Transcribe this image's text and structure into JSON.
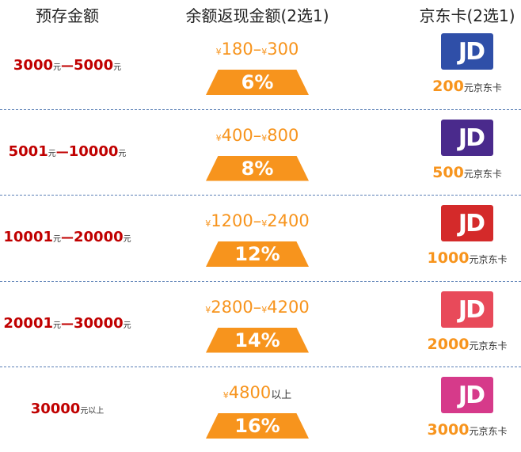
{
  "header": {
    "col1": "预存金额",
    "col2": "余额返现金额(2选1)",
    "col3": "京东卡(2选1)"
  },
  "card_logo": "JD",
  "rows": [
    {
      "deposit": {
        "from": "3000",
        "from_unit": "元",
        "dash": "—",
        "to": "5000",
        "to_unit": "元"
      },
      "cashback": {
        "yen": "¥",
        "from": "180",
        "dash": "–",
        "to_yen": "¥",
        "to": "300"
      },
      "rate": "6%",
      "card": {
        "amount": "200",
        "unit": "元京东卡",
        "color": "#2f4fa8"
      }
    },
    {
      "deposit": {
        "from": "5001",
        "from_unit": "元",
        "dash": "—",
        "to": "10000",
        "to_unit": "元"
      },
      "cashback": {
        "yen": "¥",
        "from": "400",
        "dash": "–",
        "to_yen": "¥",
        "to": "800"
      },
      "rate": "8%",
      "card": {
        "amount": "500",
        "unit": "元京东卡",
        "color": "#4a2a8c"
      }
    },
    {
      "deposit": {
        "from": "10001",
        "from_unit": "元",
        "dash": "—",
        "to": "20000",
        "to_unit": "元"
      },
      "cashback": {
        "yen": "¥",
        "from": "1200",
        "dash": "–",
        "to_yen": "¥",
        "to": "2400"
      },
      "rate": "12%",
      "card": {
        "amount": "1000",
        "unit": "元京东卡",
        "color": "#d42a2a"
      }
    },
    {
      "deposit": {
        "from": "20001",
        "from_unit": "元",
        "dash": "—",
        "to": "30000",
        "to_unit": "元"
      },
      "cashback": {
        "yen": "¥",
        "from": "2800",
        "dash": "–",
        "to_yen": "¥",
        "to": "4200"
      },
      "rate": "14%",
      "card": {
        "amount": "2000",
        "unit": "元京东卡",
        "color": "#e84a5a"
      }
    },
    {
      "deposit": {
        "from": "30000",
        "from_unit": "元以上"
      },
      "cashback": {
        "yen": "¥",
        "from": "4800",
        "suffix": "以上"
      },
      "rate": "16%",
      "card": {
        "amount": "3000",
        "unit": "元京东卡",
        "color": "#d63a8a"
      }
    }
  ]
}
